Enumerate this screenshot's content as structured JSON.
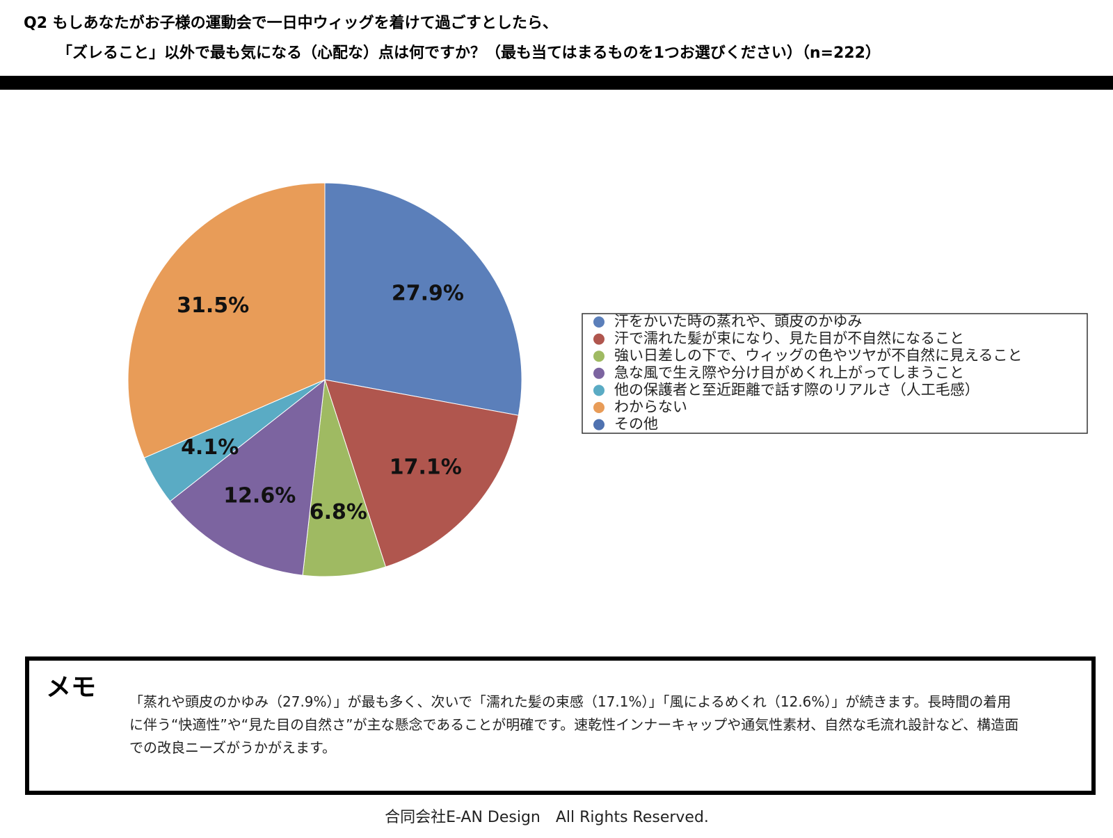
{
  "chart_data": {
    "type": "pie",
    "title": "Q2 もしあなたがお子様の運動会で一日中ウィッグを着けて過ごすとしたら、",
    "subtitle": "「ズレること」以外で最も気になる（心配な）点は何ですか？（最も当てはまるものを1つお選びください）（n=222）",
    "categories": [
      "汗をかいた時の蒸れや、頭皮のかゆみ",
      "汗で濡れた髪が束になり、見た目が不自然になること",
      "強い日差しの下で、ウィッグの色やツヤが不自然に見えること",
      "急な風で生え際や分け目がめくれ上がってしまうこと",
      "他の保護者と至近距離で話す際のリアルさ（人工毛感）",
      "わからない",
      "その他"
    ],
    "values": [
      27.9,
      17.1,
      6.8,
      12.6,
      4.1,
      31.5,
      0
    ],
    "value_labels": [
      "27.9%",
      "17.1%",
      "6.8%",
      "12.6%",
      "4.1%",
      "31.5%",
      null
    ],
    "colors": [
      "#5b7fba",
      "#b0564e",
      "#9fba62",
      "#7c64a0",
      "#5aabc4",
      "#e89c58",
      "#4f72b0"
    ],
    "legend": "right"
  },
  "memo": {
    "title": "メモ",
    "text": "「蒸れや頭皮のかゆみ（27.9%）」が最も多く、次いで「濡れた髪の束感（17.1%）」「風によるめくれ（12.6%）」が続きます。長時間の着用に伴う“快適性”や“見た目の自然さ”が主な懸念であることが明確です。速乾性インナーキャップや通気性素材、自然な毛流れ設計など、構造面での改良ニーズがうかがえます。"
  },
  "footer": "合同会社E-AN Design　All Rights Reserved."
}
